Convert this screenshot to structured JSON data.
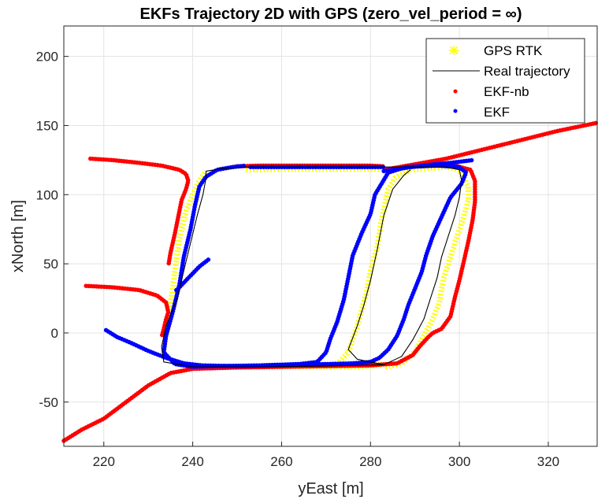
{
  "chart_data": {
    "type": "scatter",
    "title": "EKFs Trajectory 2D with GPS (zero_vel_period = ∞)",
    "xlabel": "yEast [m]",
    "ylabel": "xNorth [m]",
    "xlim": [
      211,
      331
    ],
    "ylim": [
      -82,
      222
    ],
    "xticks": [
      220,
      240,
      260,
      280,
      300,
      320
    ],
    "yticks": [
      -50,
      0,
      50,
      100,
      150,
      200
    ],
    "grid": true,
    "legend_position": "top-right",
    "series": [
      {
        "name": "GPS RTK",
        "marker": "asterisk",
        "color": "#ffff00",
        "segments": [
          [
            [
              233.2,
              -3
            ],
            [
              234,
              3
            ],
            [
              235,
              20
            ],
            [
              236,
              45
            ],
            [
              237,
              68
            ],
            [
              238.5,
              88
            ],
            [
              240,
              100
            ],
            [
              241.5,
              110
            ],
            [
              243,
              117
            ]
          ],
          [
            [
              252,
              118
            ],
            [
              260,
              118.5
            ],
            [
              270,
              118.5
            ],
            [
              283,
              118.5
            ]
          ],
          [
            [
              240,
              -25
            ],
            [
              255,
              -24
            ],
            [
              270,
              -23.5
            ],
            [
              280,
              -23.5
            ],
            [
              283,
              -23
            ]
          ],
          [
            [
              242,
              -24.5
            ],
            [
              260,
              -24
            ],
            [
              276,
              -24.5
            ],
            [
              282,
              -23
            ]
          ],
          [
            [
              273,
              -21
            ],
            [
              275,
              -14
            ],
            [
              277,
              5
            ],
            [
              279,
              28
            ],
            [
              280,
              45
            ],
            [
              281.5,
              62
            ],
            [
              282.5,
              82
            ],
            [
              284,
              104
            ],
            [
              285.5,
              112
            ],
            [
              289,
              118
            ],
            [
              297,
              120
            ],
            [
              300,
              118
            ],
            [
              302,
              106
            ],
            [
              302,
              96
            ],
            [
              301,
              84
            ],
            [
              299.5,
              70
            ],
            [
              298.5,
              60
            ],
            [
              297.5,
              50
            ],
            [
              296.5,
              40
            ],
            [
              296,
              32
            ],
            [
              295.5,
              22
            ],
            [
              294,
              10
            ],
            [
              292,
              -2
            ],
            [
              290,
              -14
            ],
            [
              287,
              -22
            ],
            [
              283,
              -25
            ]
          ]
        ]
      },
      {
        "name": "Real trajectory",
        "marker": "line",
        "color": "#000000",
        "segments": [
          [
            [
              243,
              117
            ],
            [
              247,
              119
            ],
            [
              252,
              120
            ],
            [
              265,
              120
            ],
            [
              283,
              120
            ],
            [
              289,
              120
            ],
            [
              297,
              120
            ],
            [
              300,
              118
            ],
            [
              300.5,
              110
            ],
            [
              300,
              98
            ],
            [
              299,
              85
            ],
            [
              297.5,
              70
            ],
            [
              296,
              55
            ],
            [
              295,
              40
            ],
            [
              293.5,
              25
            ],
            [
              292,
              10
            ],
            [
              289.5,
              -5
            ],
            [
              287,
              -17
            ],
            [
              283,
              -23
            ],
            [
              270,
              -24
            ],
            [
              255,
              -24.5
            ],
            [
              240,
              -24.5
            ],
            [
              233.5,
              -21
            ],
            [
              233,
              -10
            ],
            [
              234,
              5
            ],
            [
              236.5,
              25
            ],
            [
              238,
              45
            ],
            [
              239.5,
              65
            ],
            [
              241,
              85
            ],
            [
              242.3,
              100
            ],
            [
              243,
              112
            ],
            [
              243,
              117
            ]
          ],
          [
            [
              283,
              -23
            ],
            [
              277,
              -19
            ],
            [
              275,
              -12
            ],
            [
              277,
              5
            ],
            [
              278.5,
              20
            ],
            [
              280,
              38
            ],
            [
              281.5,
              60
            ],
            [
              283,
              85
            ],
            [
              285,
              104
            ],
            [
              287.5,
              114
            ],
            [
              289,
              118
            ]
          ]
        ]
      },
      {
        "name": "EKF-nb",
        "marker": "dot",
        "color": "#ff0000",
        "segments": [
          [
            [
              211,
              -78
            ],
            [
              215,
              -70
            ],
            [
              220,
              -62
            ],
            [
              225,
              -50
            ],
            [
              230,
              -38
            ],
            [
              235,
              -29
            ],
            [
              240,
              -26
            ],
            [
              250,
              -25
            ],
            [
              260,
              -24.5
            ],
            [
              270,
              -24
            ],
            [
              280,
              -23.5
            ],
            [
              286,
              -22
            ],
            [
              289.5,
              -16
            ],
            [
              291,
              -10
            ],
            [
              293,
              -3
            ],
            [
              294,
              0
            ],
            [
              296,
              3
            ],
            [
              298,
              12
            ],
            [
              299,
              26
            ],
            [
              300,
              38
            ],
            [
              301,
              52
            ],
            [
              302,
              66
            ],
            [
              303,
              82
            ],
            [
              303.5,
              95
            ],
            [
              303.5,
              110
            ],
            [
              302.5,
              118
            ],
            [
              299,
              121
            ],
            [
              292,
              121
            ],
            [
              287,
              120
            ],
            [
              283,
              118
            ],
            [
              290,
              122
            ],
            [
              297,
              126
            ],
            [
              302,
              130
            ],
            [
              312,
              138
            ],
            [
              322,
              146
            ],
            [
              331,
              152
            ]
          ],
          [
            [
              217,
              126
            ],
            [
              222,
              125
            ],
            [
              228,
              123
            ],
            [
              233,
              121
            ],
            [
              237,
              118
            ],
            [
              238.5,
              115
            ],
            [
              239,
              110
            ],
            [
              238.5,
              104
            ],
            [
              237.5,
              96
            ],
            [
              236.8,
              85
            ],
            [
              236,
              72
            ],
            [
              235,
              58
            ],
            [
              234.6,
              50
            ]
          ],
          [
            [
              250,
              120.5
            ],
            [
              255,
              121
            ],
            [
              262,
              121
            ],
            [
              270,
              121
            ],
            [
              280,
              121
            ],
            [
              283,
              120.5
            ]
          ],
          [
            [
              216,
              34
            ],
            [
              222,
              33
            ],
            [
              228,
              31
            ],
            [
              232,
              27
            ],
            [
              234,
              22
            ],
            [
              234.5,
              15
            ],
            [
              234,
              10
            ],
            [
              233.5,
              3
            ],
            [
              233,
              -3
            ]
          ]
        ]
      },
      {
        "name": "EKF",
        "marker": "dot",
        "color": "#0000ff",
        "segments": [
          [
            [
              220.5,
              2
            ],
            [
              223,
              -3
            ],
            [
              226,
              -7
            ],
            [
              230,
              -13
            ],
            [
              234,
              -18
            ],
            [
              238,
              -22
            ],
            [
              242,
              -23.5
            ],
            [
              250,
              -24
            ],
            [
              260,
              -23.5
            ],
            [
              270,
              -22.5
            ],
            [
              276,
              -22
            ],
            [
              280,
              -21
            ],
            [
              282,
              -18
            ],
            [
              284,
              -12
            ],
            [
              286,
              -2
            ],
            [
              287.5,
              10
            ],
            [
              288.5,
              20
            ],
            [
              290,
              32
            ],
            [
              291.5,
              44
            ],
            [
              292.5,
              56
            ],
            [
              294,
              70
            ],
            [
              296,
              84
            ],
            [
              298,
              98
            ],
            [
              300.5,
              108
            ],
            [
              301.5,
              116
            ],
            [
              300,
              120
            ],
            [
              295,
              121
            ],
            [
              288,
              120
            ],
            [
              284,
              116
            ],
            [
              282.5,
              108
            ],
            [
              281,
              100
            ],
            [
              280,
              86
            ],
            [
              278,
              72
            ],
            [
              276,
              56
            ],
            [
              275,
              40
            ],
            [
              274,
              24
            ],
            [
              272.5,
              8
            ],
            [
              271,
              -4
            ],
            [
              270,
              -14
            ],
            [
              268,
              -21
            ],
            [
              264,
              -22.5
            ],
            [
              255,
              -23.5
            ],
            [
              245,
              -24
            ],
            [
              240,
              -24.5
            ],
            [
              236,
              -22.5
            ],
            [
              233.5,
              -14
            ],
            [
              234,
              -2
            ],
            [
              235.5,
              15
            ],
            [
              237,
              35
            ],
            [
              238,
              55
            ],
            [
              239.5,
              75
            ],
            [
              240.5,
              92
            ],
            [
              241.5,
              106
            ],
            [
              243,
              113
            ],
            [
              245.5,
              118
            ],
            [
              249,
              120
            ],
            [
              252,
              121
            ]
          ],
          [
            [
              243.5,
              53
            ],
            [
              241.5,
              48
            ],
            [
              240,
              43
            ],
            [
              238.5,
              38
            ],
            [
              237,
              33
            ],
            [
              236,
              30
            ]
          ],
          [
            [
              253,
              120
            ],
            [
              262,
              120
            ],
            [
              272,
              120
            ],
            [
              283,
              120
            ]
          ],
          [
            [
              283,
              117
            ],
            [
              287,
              119
            ],
            [
              293,
              121.5
            ],
            [
              298,
              123
            ],
            [
              303,
              125
            ]
          ]
        ]
      }
    ]
  },
  "legend": {
    "items": [
      "GPS RTK",
      "Real trajectory",
      "EKF-nb",
      "EKF"
    ]
  }
}
